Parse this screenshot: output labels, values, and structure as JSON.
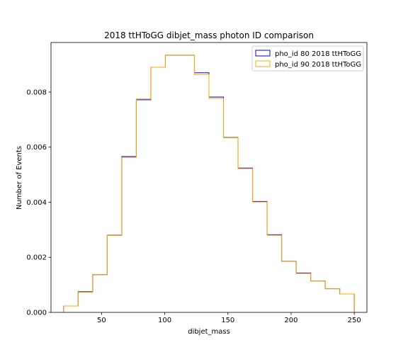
{
  "chart_data": {
    "type": "histogram-step",
    "title": "2018 ttHToGG dibjet_mass photon ID comparison",
    "xlabel": "dibjet_mass",
    "ylabel": "Number of Events",
    "xlim": [
      10,
      260
    ],
    "ylim": [
      0,
      0.0098
    ],
    "xticks": [
      50,
      100,
      150,
      200,
      250
    ],
    "yticks": [
      0.0,
      0.002,
      0.004,
      0.006,
      0.008
    ],
    "ytick_labels": [
      "0.000",
      "0.002",
      "0.004",
      "0.006",
      "0.008"
    ],
    "legend_position": "upper-right",
    "bin_edges": [
      20,
      31.5,
      43,
      54.5,
      66,
      77.5,
      89,
      100.5,
      112,
      123.5,
      135,
      146.5,
      158,
      169.5,
      181,
      192.5,
      204,
      215.5,
      227,
      238.5,
      250
    ],
    "series": [
      {
        "name": "pho_id 80 2018 ttHToGG",
        "color": "#0000cc",
        "values": [
          0.00023,
          0.00075,
          0.00137,
          0.0028,
          0.00566,
          0.00772,
          0.0089,
          0.00934,
          0.00934,
          0.0087,
          0.00782,
          0.00635,
          0.00524,
          0.00403,
          0.00282,
          0.00186,
          0.00143,
          0.00114,
          0.00086,
          0.00067
        ]
      },
      {
        "name": "pho_id 90 2018 ttHToGG",
        "color": "#ffa500",
        "values": [
          0.00023,
          0.00073,
          0.00137,
          0.00279,
          0.00563,
          0.00775,
          0.0089,
          0.00934,
          0.00934,
          0.00864,
          0.00777,
          0.00634,
          0.00522,
          0.00401,
          0.0028,
          0.00186,
          0.00141,
          0.00114,
          0.00086,
          0.00067
        ]
      }
    ]
  }
}
